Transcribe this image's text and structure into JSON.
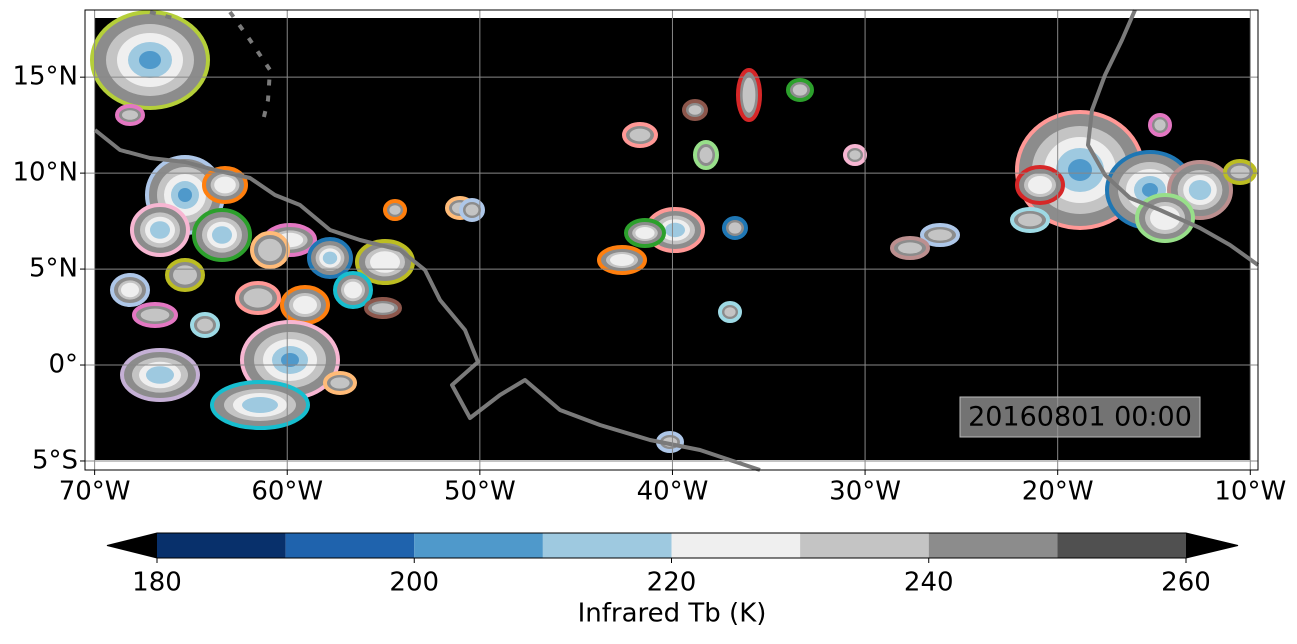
{
  "map": {
    "xlim": [
      -70.5,
      -9.6
    ],
    "ylim": [
      -5.47,
      18.5
    ],
    "xticks": [
      {
        "value": -70,
        "label": "70°W"
      },
      {
        "value": -60,
        "label": "60°W"
      },
      {
        "value": -50,
        "label": "50°W"
      },
      {
        "value": -40,
        "label": "40°W"
      },
      {
        "value": -30,
        "label": "30°W"
      },
      {
        "value": -20,
        "label": "20°W"
      },
      {
        "value": -10,
        "label": "10°W"
      }
    ],
    "yticks": [
      {
        "value": -5,
        "label": "5°S"
      },
      {
        "value": 0,
        "label": "0°"
      },
      {
        "value": 5,
        "label": "5°N"
      },
      {
        "value": 10,
        "label": "10°N"
      },
      {
        "value": 15,
        "label": "15°N"
      }
    ],
    "grid": true,
    "annotation": "20160801 00:00"
  },
  "colorbar": {
    "levels": [
      180,
      190,
      200,
      210,
      220,
      230,
      240,
      250,
      260
    ],
    "colors": [
      "#08306b",
      "#1f63ad",
      "#4f99cb",
      "#9ec9e0",
      "#efefef",
      "#c4c4c4",
      "#8c8c8c",
      "#505050"
    ],
    "extend_colors": [
      "#000000",
      "#000000"
    ],
    "ticks": [
      180,
      200,
      220,
      240,
      260
    ],
    "label": "Infrared Tb (K)"
  }
}
